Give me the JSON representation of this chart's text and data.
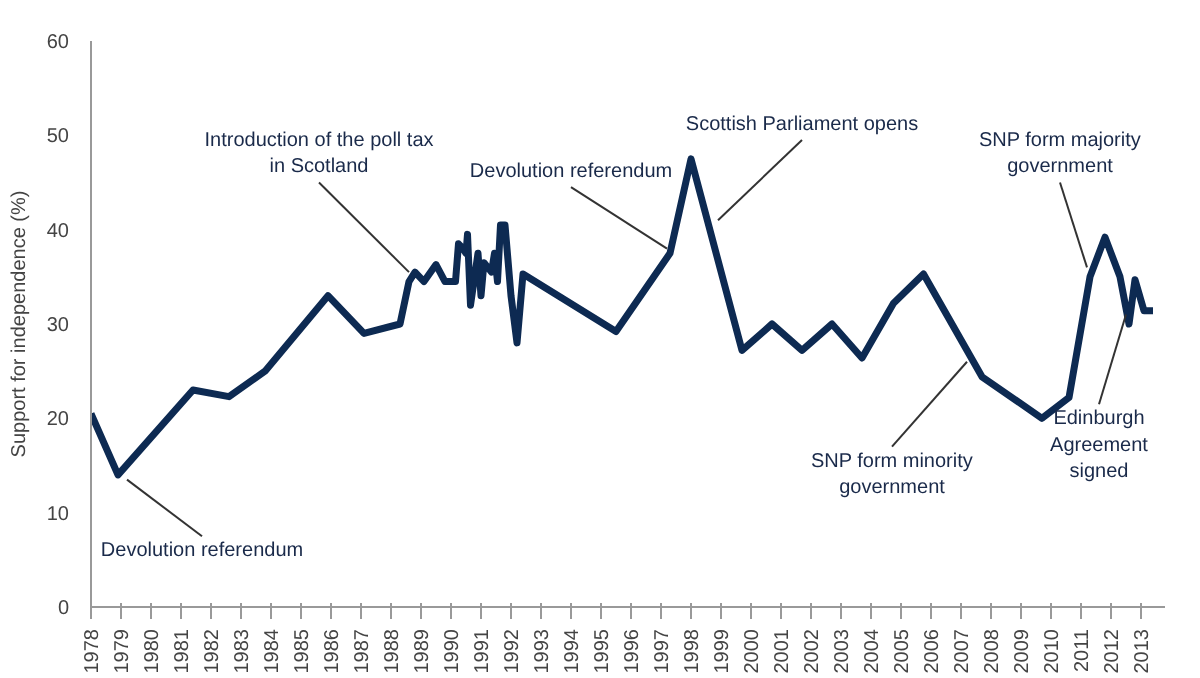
{
  "chart_data": {
    "type": "line",
    "ylabel": "Support for independence (%)",
    "x": [
      1978.0,
      1978.9,
      1981.4,
      1982.6,
      1983.8,
      1985.9,
      1987.1,
      1988.3,
      1988.6,
      1988.8,
      1989.1,
      1989.5,
      1989.8,
      1990.15,
      1990.25,
      1990.4,
      1990.5,
      1990.55,
      1990.65,
      1990.9,
      1991.0,
      1991.1,
      1991.35,
      1991.45,
      1991.55,
      1991.65,
      1991.8,
      1992.0,
      1992.2,
      1992.4,
      1995.5,
      1997.3,
      1998.0,
      1999.7,
      2000.7,
      2001.7,
      2002.7,
      2003.7,
      2004.75,
      2005.75,
      2007.7,
      2009.7,
      2010.6,
      2011.3,
      2011.8,
      2012.3,
      2012.6,
      2012.8,
      2013.1,
      2013.4
    ],
    "series": [
      {
        "color": "#0d2a52",
        "values": [
          20.5,
          14,
          23,
          22.3,
          25,
          33,
          29,
          30,
          34.5,
          35.5,
          34.5,
          36.3,
          34.5,
          34.5,
          38.5,
          38,
          37.5,
          39.5,
          32,
          37.5,
          33,
          36.5,
          35.5,
          37.5,
          34.5,
          40.5,
          40.5,
          33,
          28,
          35.3,
          29.2,
          37.5,
          47.5,
          27.2,
          30,
          27.2,
          30,
          26.4,
          32.2,
          35.3,
          24.4,
          20,
          22.2,
          35,
          39.2,
          35,
          30,
          34.7,
          31.4,
          31.4
        ]
      }
    ],
    "xlim": [
      1978,
      2013.8
    ],
    "xticks": [
      1978,
      1979,
      1980,
      1981,
      1982,
      1983,
      1984,
      1985,
      1986,
      1987,
      1988,
      1989,
      1990,
      1991,
      1992,
      1993,
      1994,
      1995,
      1996,
      1997,
      1998,
      1999,
      2000,
      2001,
      2002,
      2003,
      2004,
      2005,
      2006,
      2007,
      2008,
      2009,
      2010,
      2011,
      2012,
      2013
    ],
    "ylim": [
      0,
      60
    ],
    "yticks": [
      0,
      10,
      20,
      30,
      40,
      50,
      60
    ],
    "grid": false,
    "annotations": [
      {
        "text": "Devolution referendum",
        "x": 1979.2,
        "y": 13.5
      },
      {
        "text": "Introduction of the poll tax\nin Scotland",
        "x": 1988.6,
        "y": 35.5
      },
      {
        "text": "Devolution referendum",
        "x": 1997.2,
        "y": 38
      },
      {
        "text": "Scottish Parliament opens",
        "x": 1998.9,
        "y": 41
      },
      {
        "text": "SNP form minority\ngovernment",
        "x": 2007.2,
        "y": 26
      },
      {
        "text": "SNP form majority\ngovernment",
        "x": 2011.2,
        "y": 36
      },
      {
        "text": "Edinburgh\nAgreement\nsigned",
        "x": 2012.5,
        "y": 31
      }
    ]
  }
}
